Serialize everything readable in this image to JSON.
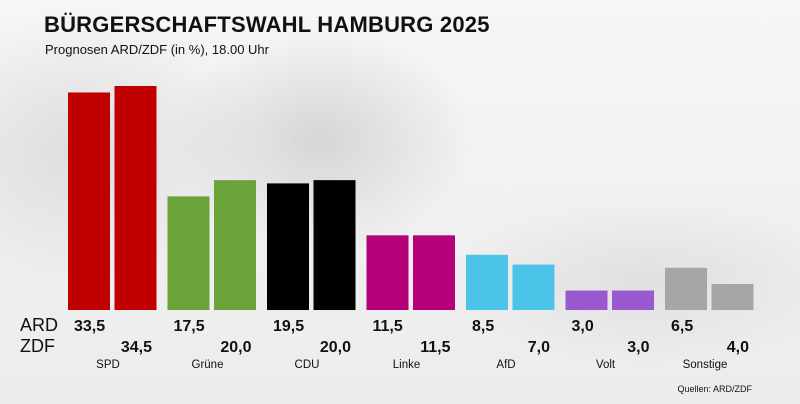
{
  "title": "BÜRGERSCHAFTSWAHL HAMBURG 2025",
  "subtitle": "Prognosen ARD/ZDF (in %), 18.00 Uhr",
  "source": "Quellen: ARD/ZDF",
  "chart_data": {
    "type": "bar",
    "categories": [
      "SPD",
      "Grüne",
      "CDU",
      "Linke",
      "AfD",
      "Volt",
      "Sonstige"
    ],
    "series": [
      {
        "name": "ARD",
        "values": [
          33.5,
          17.5,
          19.5,
          11.5,
          8.5,
          3.0,
          6.5
        ]
      },
      {
        "name": "ZDF",
        "values": [
          34.5,
          20.0,
          20.0,
          11.5,
          7.0,
          3.0,
          4.0
        ]
      }
    ],
    "value_labels": {
      "ARD": [
        "33,5",
        "17,5",
        "19,5",
        "11,5",
        "8,5",
        "3,0",
        "6,5"
      ],
      "ZDF": [
        "34,5",
        "20,0",
        "20,0",
        "11,5",
        "7,0",
        "3,0",
        "4,0"
      ]
    },
    "colors": [
      "#c00000",
      "#6aa339",
      "#000000",
      "#b5007a",
      "#4cc3e8",
      "#9b59d0",
      "#a6a6a6"
    ],
    "ylim": [
      0,
      35
    ],
    "grid": false
  }
}
